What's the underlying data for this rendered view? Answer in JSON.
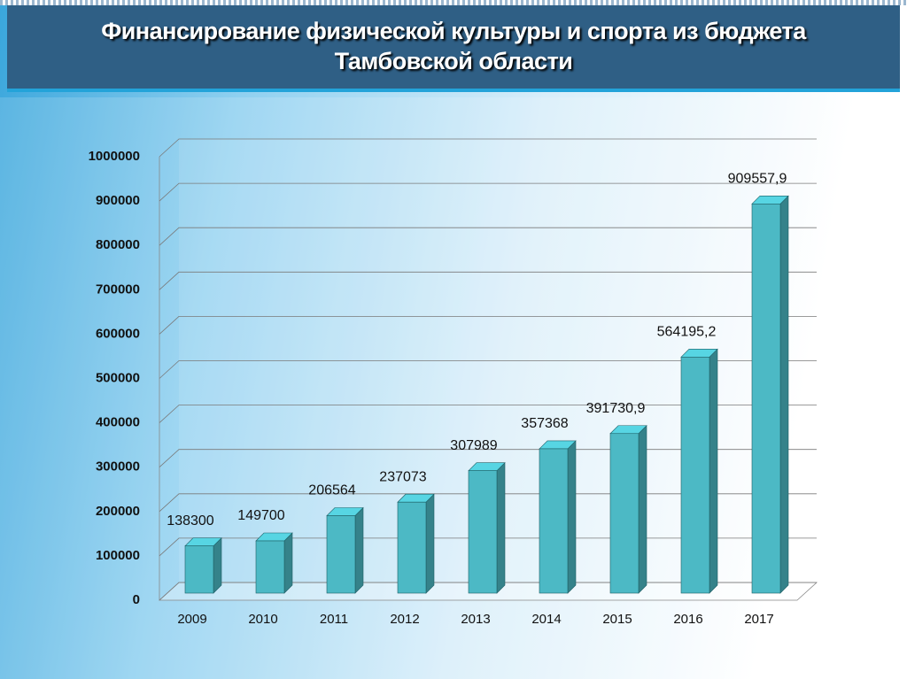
{
  "chart_data": {
    "type": "bar",
    "title": "Финансирование физической культуры и спорта из бюджета Тамбовской области",
    "categories": [
      "2009",
      "2010",
      "2011",
      "2012",
      "2013",
      "2014",
      "2015",
      "2016",
      "2017"
    ],
    "values": [
      138300,
      149700,
      206564,
      237073,
      307989,
      357368,
      391730.9,
      564195.2,
      909557.9
    ],
    "value_labels": [
      "138300",
      "149700",
      "206564",
      "237073",
      "307989",
      "357368",
      "391730,9",
      "564195,2",
      "909557,9"
    ],
    "color": "#4cb9c5",
    "ylim": [
      0,
      1000000
    ],
    "yticks": [
      0,
      100000,
      200000,
      300000,
      400000,
      500000,
      600000,
      700000,
      800000,
      900000,
      1000000
    ],
    "grid": true
  }
}
